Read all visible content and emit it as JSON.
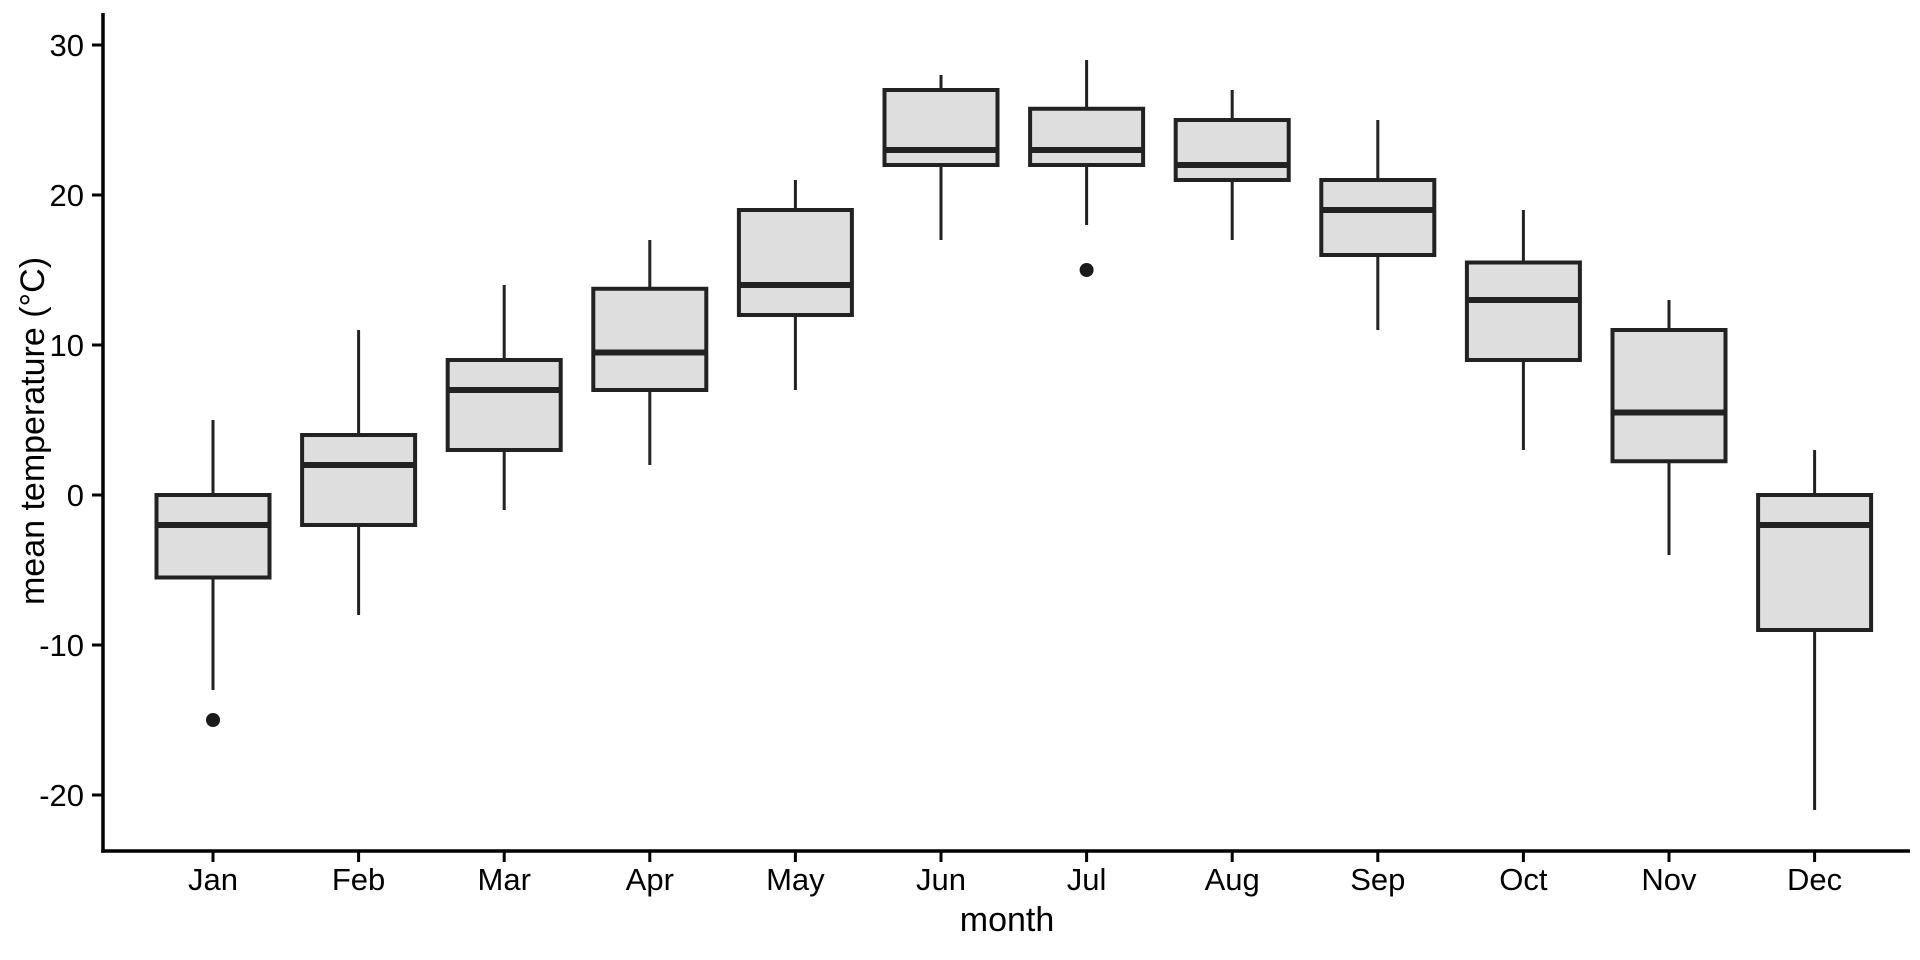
{
  "chart_data": {
    "type": "boxplot",
    "title": "",
    "xlabel": "month",
    "ylabel": "mean temperature (°C)",
    "categories": [
      "Jan",
      "Feb",
      "Mar",
      "Apr",
      "May",
      "Jun",
      "Jul",
      "Aug",
      "Sep",
      "Oct",
      "Nov",
      "Dec"
    ],
    "yticks": [
      30,
      20,
      10,
      0,
      -10,
      -20
    ],
    "ylim": [
      -23.7,
      32.1
    ],
    "grid": false,
    "legend": "none",
    "colors": {
      "box_fill": "#dedede",
      "box_stroke": "#222222",
      "axis": "#000000",
      "background": "#ffffff"
    },
    "series": [
      {
        "month": "Jan",
        "min": -13,
        "q1": -5.5,
        "median": -2,
        "q3": 0,
        "max": 5,
        "outliers": [
          -15
        ]
      },
      {
        "month": "Feb",
        "min": -8,
        "q1": -2,
        "median": 2,
        "q3": 4,
        "max": 11,
        "outliers": []
      },
      {
        "month": "Mar",
        "min": -1,
        "q1": 3,
        "median": 7,
        "q3": 9,
        "max": 14,
        "outliers": []
      },
      {
        "month": "Apr",
        "min": 2,
        "q1": 7,
        "median": 9.5,
        "q3": 13.75,
        "max": 17,
        "outliers": []
      },
      {
        "month": "May",
        "min": 7,
        "q1": 12,
        "median": 14,
        "q3": 19,
        "max": 21,
        "outliers": []
      },
      {
        "month": "Jun",
        "min": 17,
        "q1": 22,
        "median": 23,
        "q3": 27,
        "max": 28,
        "outliers": []
      },
      {
        "month": "Jul",
        "min": 18,
        "q1": 22,
        "median": 23,
        "q3": 25.75,
        "max": 29,
        "outliers": [
          15
        ]
      },
      {
        "month": "Aug",
        "min": 17,
        "q1": 21,
        "median": 22,
        "q3": 25,
        "max": 27,
        "outliers": []
      },
      {
        "month": "Sep",
        "min": 11,
        "q1": 16,
        "median": 19,
        "q3": 21,
        "max": 25,
        "outliers": []
      },
      {
        "month": "Oct",
        "min": 3,
        "q1": 9,
        "median": 13,
        "q3": 15.5,
        "max": 19,
        "outliers": []
      },
      {
        "month": "Nov",
        "min": -4,
        "q1": 2.25,
        "median": 5.5,
        "q3": 11,
        "max": 13,
        "outliers": []
      },
      {
        "month": "Dec",
        "min": -21,
        "q1": -9,
        "median": -2,
        "q3": 0,
        "max": 3,
        "outliers": []
      }
    ]
  }
}
